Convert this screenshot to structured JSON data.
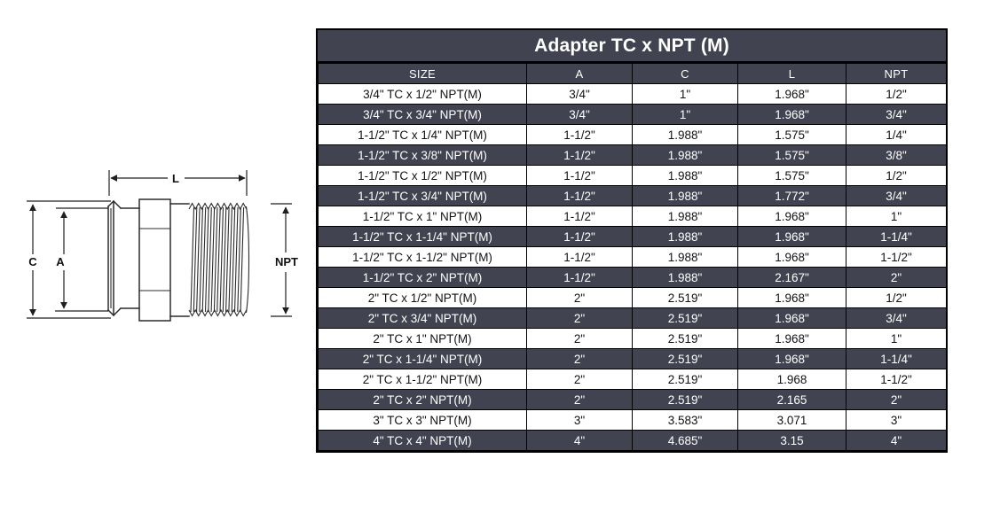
{
  "diagram": {
    "labels": {
      "l": "L",
      "c": "C",
      "a": "A",
      "npt": "NPT"
    }
  },
  "table": {
    "title": "Adapter TC x NPT (M)",
    "columns": [
      "SIZE",
      "A",
      "C",
      "L",
      "NPT"
    ],
    "rows": [
      [
        "3/4\" TC x 1/2\" NPT(M)",
        "3/4\"",
        "1\"",
        "1.968\"",
        "1/2\""
      ],
      [
        "3/4\" TC x 3/4\" NPT(M)",
        "3/4\"",
        "1\"",
        "1.968\"",
        "3/4\""
      ],
      [
        "1-1/2\" TC x 1/4\" NPT(M)",
        "1-1/2\"",
        "1.988\"",
        "1.575\"",
        "1/4\""
      ],
      [
        "1-1/2\" TC x 3/8\" NPT(M)",
        "1-1/2\"",
        "1.988\"",
        "1.575\"",
        "3/8\""
      ],
      [
        "1-1/2\" TC x 1/2\" NPT(M)",
        "1-1/2\"",
        "1.988\"",
        "1.575\"",
        "1/2\""
      ],
      [
        "1-1/2\" TC x 3/4\" NPT(M)",
        "1-1/2\"",
        "1.988\"",
        "1.772\"",
        "3/4\""
      ],
      [
        "1-1/2\" TC x 1\" NPT(M)",
        "1-1/2\"",
        "1.988\"",
        "1.968\"",
        "1\""
      ],
      [
        "1-1/2\" TC x 1-1/4\" NPT(M)",
        "1-1/2\"",
        "1.988\"",
        "1.968\"",
        "1-1/4\""
      ],
      [
        "1-1/2\" TC x 1-1/2\" NPT(M)",
        "1-1/2\"",
        "1.988\"",
        "1.968\"",
        "1-1/2\""
      ],
      [
        "1-1/2\" TC x 2\" NPT(M)",
        "1-1/2\"",
        "1.988\"",
        "2.167\"",
        "2\""
      ],
      [
        "2\" TC x 1/2\" NPT(M)",
        "2\"",
        "2.519\"",
        "1.968\"",
        "1/2\""
      ],
      [
        "2\" TC x 3/4\" NPT(M)",
        "2\"",
        "2.519\"",
        "1.968\"",
        "3/4\""
      ],
      [
        "2\" TC x 1\" NPT(M)",
        "2\"",
        "2.519\"",
        "1.968\"",
        "1\""
      ],
      [
        "2\" TC x 1-1/4\" NPT(M)",
        "2\"",
        "2.519\"",
        "1.968\"",
        "1-1/4\""
      ],
      [
        "2\" TC x 1-1/2\" NPT(M)",
        "2\"",
        "2.519\"",
        "1.968",
        "1-1/2\""
      ],
      [
        "2\" TC x 2\" NPT(M)",
        "2\"",
        "2.519\"",
        "2.165",
        "2\""
      ],
      [
        "3\" TC x 3\" NPT(M)",
        "3\"",
        "3.583\"",
        "3.071",
        "3\""
      ],
      [
        "4\" TC x 4\" NPT(M)",
        "4\"",
        "4.685\"",
        "3.15",
        "4\""
      ]
    ],
    "colors": {
      "slate_bg": "#414450",
      "light_row_bg": "#ffffff",
      "dark_row_text": "#ffffff",
      "light_row_text": "#121212",
      "border": "#000000"
    }
  }
}
